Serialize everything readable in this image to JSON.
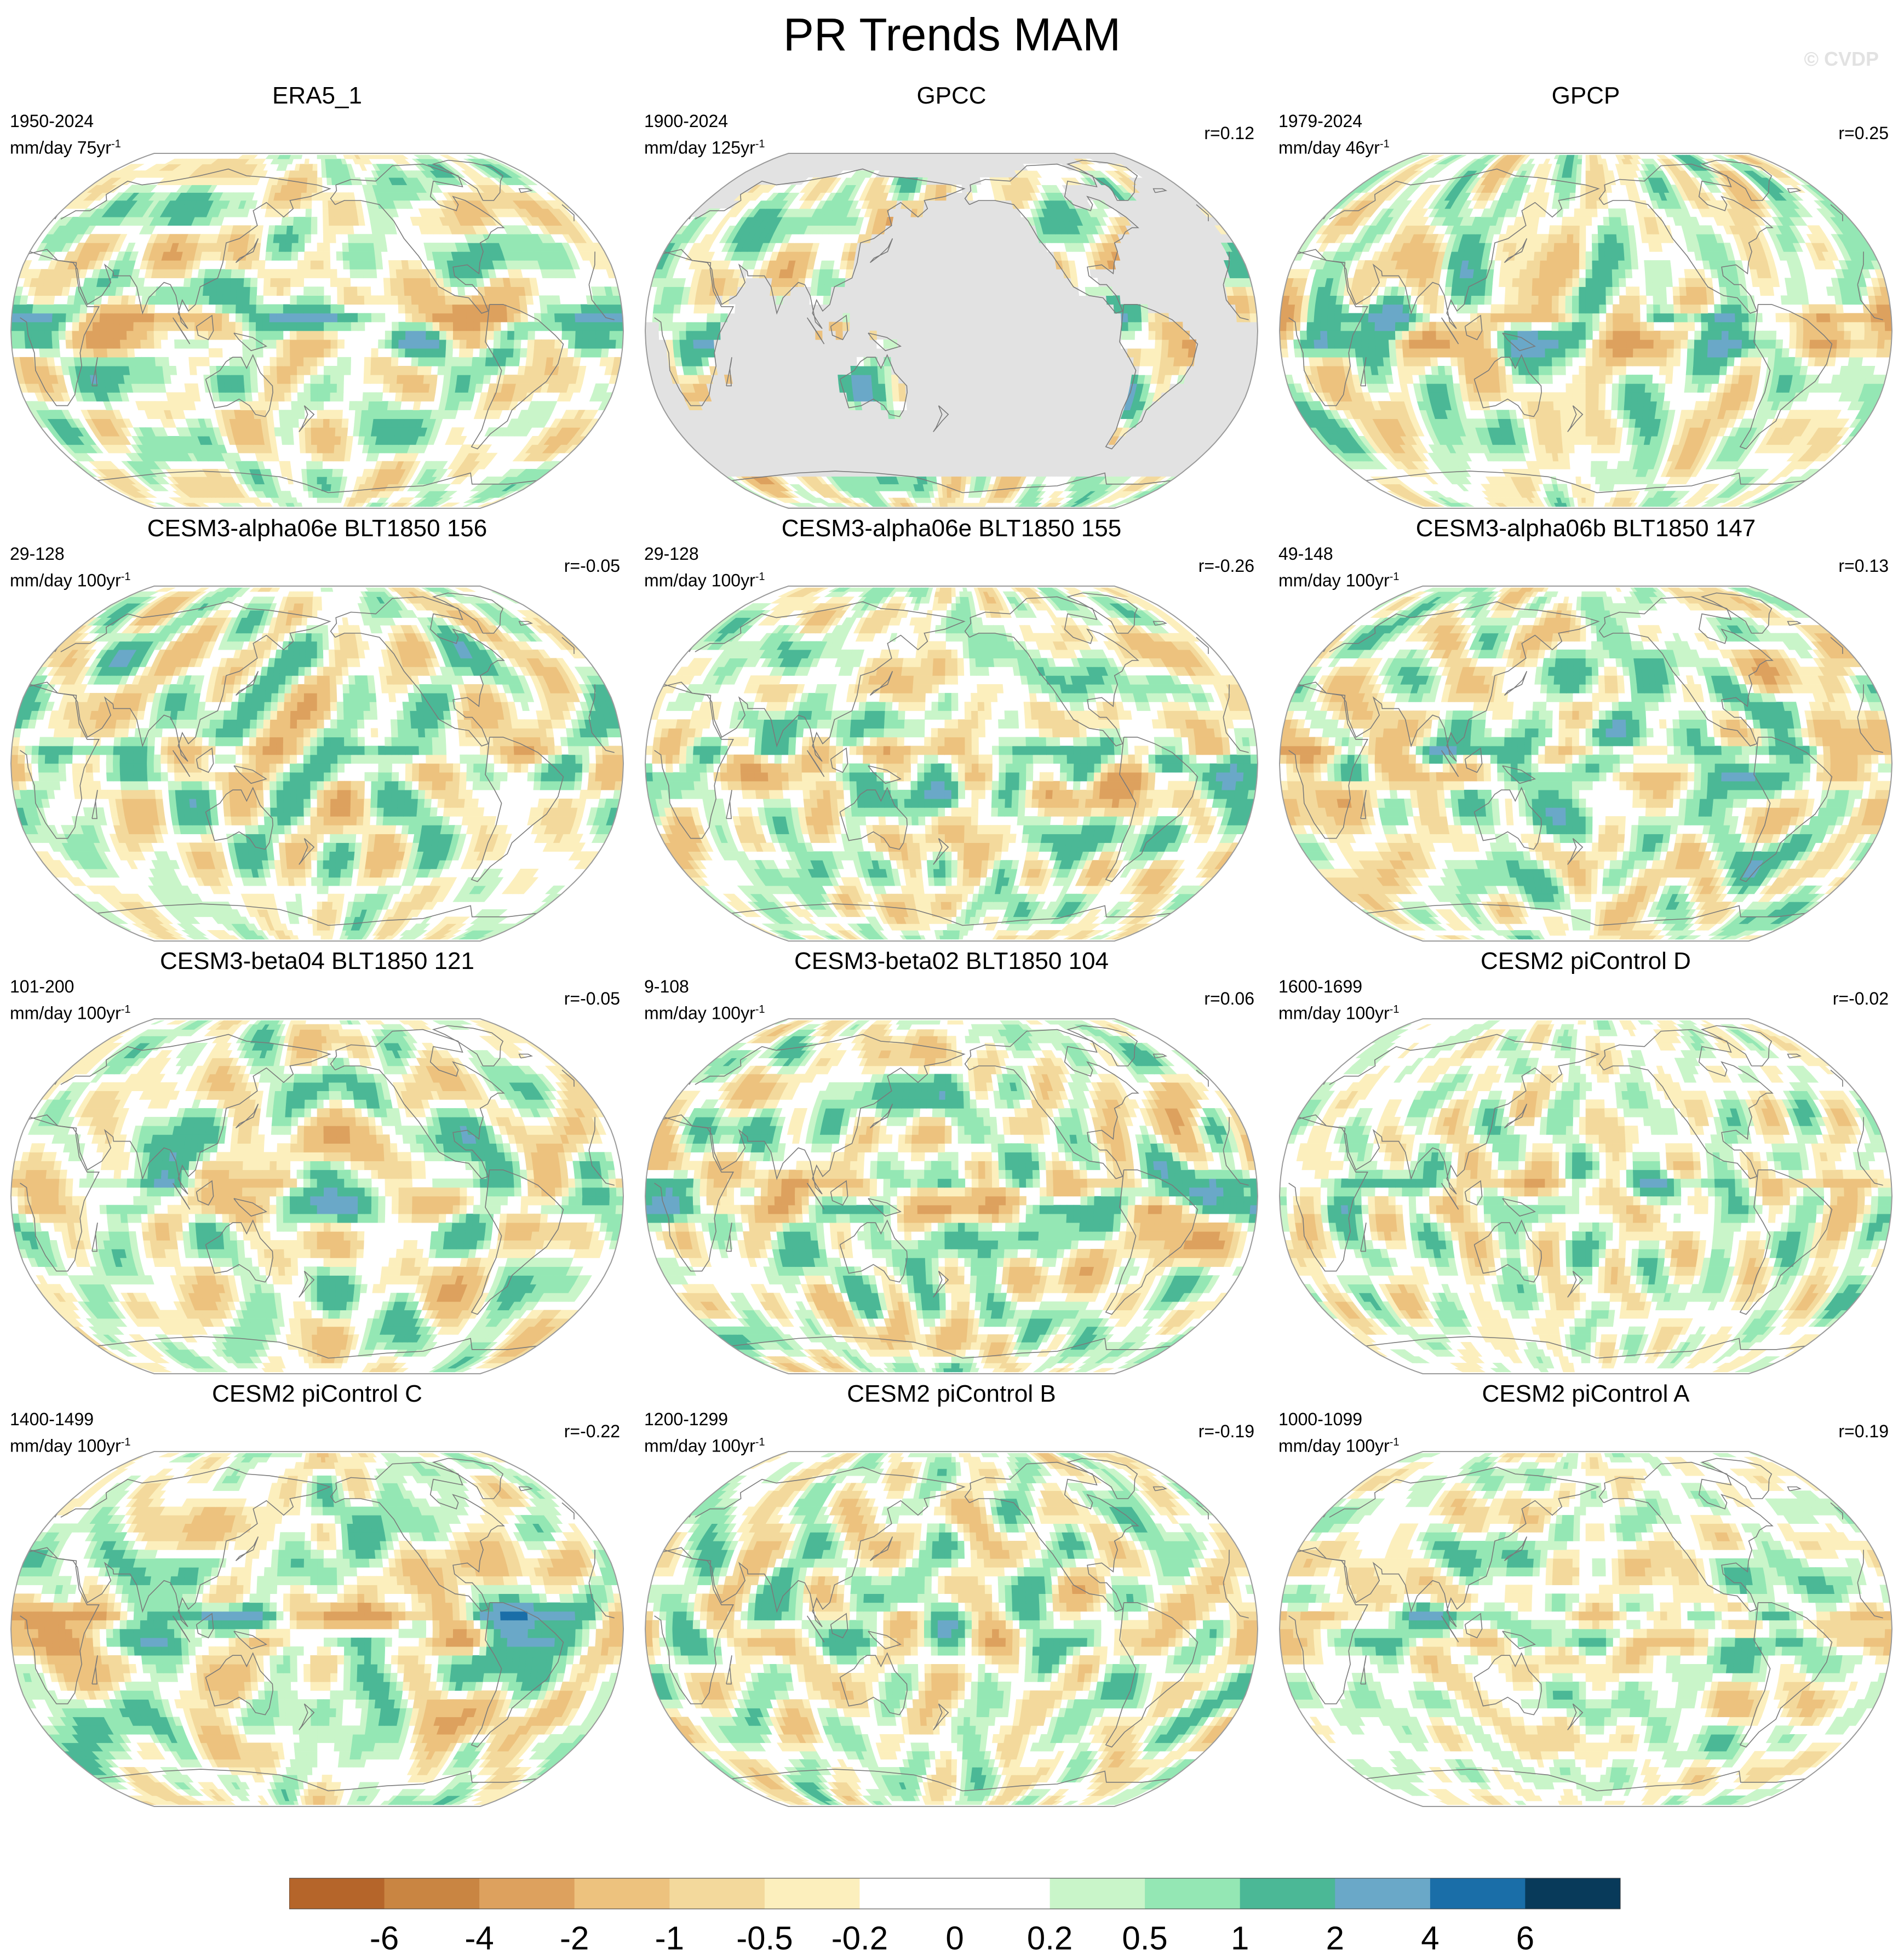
{
  "title": "PR Trends MAM",
  "watermark": "© CVDP",
  "chart_data": {
    "type": "heatmap",
    "variable": "PR",
    "season": "MAM",
    "projection": "Robinson (Pacific-centered)",
    "colorbar": {
      "tick_labels": [
        "-6",
        "-4",
        "-2",
        "-1",
        "-0.5",
        "-0.2",
        "0",
        "0.2",
        "0.5",
        "1",
        "2",
        "4",
        "6"
      ],
      "colors": [
        "#b5652a",
        "#c98542",
        "#dda15e",
        "#edc27e",
        "#f3d99c",
        "#fcefbd",
        "#ffffff",
        "#ffffff",
        "#c9f5c9",
        "#94e7b4",
        "#4bb896",
        "#6aa8c8",
        "#1a6ea8",
        "#083a5a"
      ]
    },
    "panels": [
      {
        "title": "ERA5_1",
        "period": "1950-2024",
        "units": "mm/day",
        "trend_per": "75yr",
        "r": "",
        "seed": 11,
        "mask_land_only": false
      },
      {
        "title": "GPCC",
        "period": "1900-2024",
        "units": "mm/day",
        "trend_per": "125yr",
        "r": "r=0.12",
        "seed": 23,
        "mask_land_only": true
      },
      {
        "title": "GPCP",
        "period": "1979-2024",
        "units": "mm/day",
        "trend_per": "46yr",
        "r": "r=0.25",
        "seed": 37,
        "mask_land_only": false
      },
      {
        "title": "CESM3-alpha06e BLT1850 156",
        "period": "29-128",
        "units": "mm/day",
        "trend_per": "100yr",
        "r": "r=-0.05",
        "seed": 41,
        "mask_land_only": false
      },
      {
        "title": "CESM3-alpha06e BLT1850 155",
        "period": "29-128",
        "units": "mm/day",
        "trend_per": "100yr",
        "r": "r=-0.26",
        "seed": 53,
        "mask_land_only": false
      },
      {
        "title": "CESM3-alpha06b BLT1850 147",
        "period": "49-148",
        "units": "mm/day",
        "trend_per": "100yr",
        "r": "r=0.13",
        "seed": 67,
        "mask_land_only": false
      },
      {
        "title": "CESM3-beta04 BLT1850 121",
        "period": "101-200",
        "units": "mm/day",
        "trend_per": "100yr",
        "r": "r=-0.05",
        "seed": 71,
        "mask_land_only": false
      },
      {
        "title": "CESM3-beta02 BLT1850 104",
        "period": "9-108",
        "units": "mm/day",
        "trend_per": "100yr",
        "r": "r=0.06",
        "seed": 83,
        "mask_land_only": false
      },
      {
        "title": "CESM2 piControl D",
        "period": "1600-1699",
        "units": "mm/day",
        "trend_per": "100yr",
        "r": "r=-0.02",
        "seed": 97,
        "mask_land_only": false
      },
      {
        "title": "CESM2 piControl C",
        "period": "1400-1499",
        "units": "mm/day",
        "trend_per": "100yr",
        "r": "r=-0.22",
        "seed": 101,
        "mask_land_only": false
      },
      {
        "title": "CESM2 piControl B",
        "period": "1200-1299",
        "units": "mm/day",
        "trend_per": "100yr",
        "r": "r=-0.19",
        "seed": 113,
        "mask_land_only": false
      },
      {
        "title": "CESM2 piControl A",
        "period": "1000-1099",
        "units": "mm/day",
        "trend_per": "100yr",
        "r": "r=0.19",
        "seed": 127,
        "mask_land_only": false
      }
    ]
  }
}
